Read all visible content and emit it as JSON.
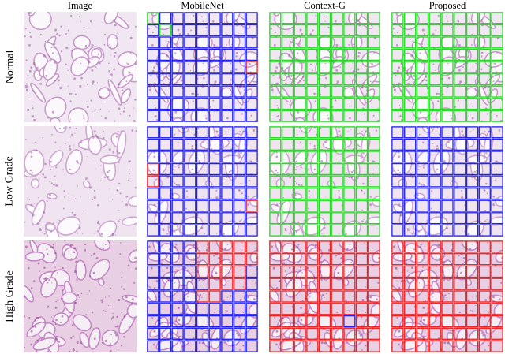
{
  "columns": {
    "image": "Image",
    "mobilenet": "MobileNet",
    "contextg": "Context-G",
    "proposed": "Proposed"
  },
  "rows": {
    "normal": "Normal",
    "low": "Low Grade",
    "high": "High Grade"
  },
  "legend_colors": {
    "normal_class": "#22dd22",
    "low_grade_class": "#2222ee",
    "high_grade_class": "#ee2222"
  },
  "grids": {
    "normal": {
      "mobilenet": [
        "GBBBBBBBB",
        "BGBBBBBBB",
        "BBBBBBBBB",
        "BBBBBBBBB",
        "BBBBBBBBR",
        "BBBBBBBBB",
        "BBBBBBBBB",
        "BBBBBBBBB",
        "BBBBBBBBB"
      ],
      "contextg": [
        "GGGGGGGGG",
        "GGGGGGGGG",
        "GGGGGGGGG",
        "GGGGGGGGG",
        "GGGGGGGGG",
        "GGGGGGGGG",
        "GGGGGGGGG",
        "GGGGGGGGG",
        "GGGGGGGGG"
      ],
      "proposed": [
        "GGGGGGGGG",
        "GGGGGGGGG",
        "GGGGGGGGG",
        "GGGGGGGGG",
        "GGGGGGGGG",
        "GGGGGGGGG",
        "GGGGGGGGG",
        "GGGGGGGGG",
        "GGGGGGGGG"
      ]
    },
    "low": {
      "mobilenet": [
        "BBBBBBBBB",
        "BBBBBBBBB",
        "BBBBBBBBB",
        "RBBBBBBBB",
        "RBBBBBBBB",
        "BBBBBBBBB",
        "BBBBBBBBR",
        "BBBBBBBBB",
        "BBBBBBBBB"
      ],
      "contextg": [
        "GGGGGGGGG",
        "GGGGGGGGG",
        "GGGGGGGGG",
        "GGGGGGGGG",
        "GGGGGGGGG",
        "GGGGGGGGG",
        "GGGGGGGGG",
        "GGGGGGGGG",
        "GGGGGGGGG"
      ],
      "proposed": [
        "BBBBBBBBB",
        "BBBBBBBBB",
        "BBBBBBBBB",
        "BBBBBBBBB",
        "BBBBBBBBB",
        "BBBBBBBBB",
        "BBBBBBBBB",
        "BBBBBBBBB",
        "BBBBBBBBB"
      ]
    },
    "high": {
      "mobilenet": [
        "BBBBRRRRR",
        "BBBBRRRRR",
        "BBBBRRRRB",
        "BBBBBRRRB",
        "BBBBRRBBB",
        "BBBBBBBBB",
        "BBBBBBBBB",
        "BBBBBBBBB",
        "BBBBBBBBB"
      ],
      "contextg": [
        "RRRRRRRRR",
        "RRRRRRRRR",
        "RRRRRRRRR",
        "RRRRRRRRR",
        "RRRRRRRRR",
        "RRRRRRRRR",
        "RRRRRRBRR",
        "RRRRRRRRR",
        "RRRRRRRRR"
      ],
      "proposed": [
        "RRRRRRRRR",
        "RRRRRRRRR",
        "RRRRRRRRR",
        "RRRRRRRRR",
        "RRRRRRRRR",
        "RRRRRRRRR",
        "RRRRRRRRR",
        "RRRRRRRRR",
        "RRRRRRRRR"
      ]
    }
  }
}
